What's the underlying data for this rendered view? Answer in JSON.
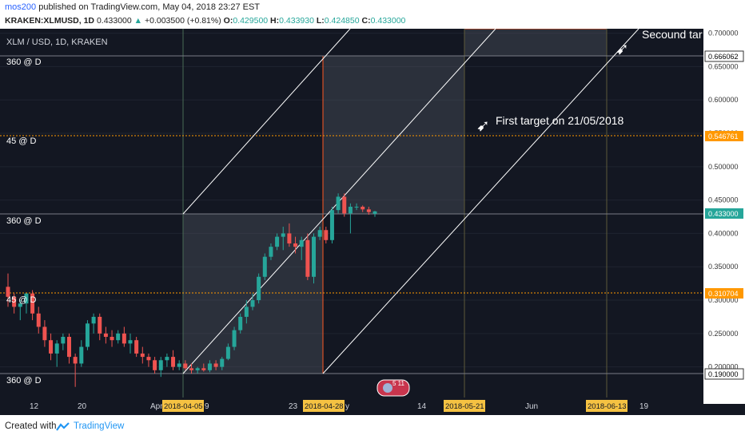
{
  "header": {
    "author": "mos200",
    "published_text": "published on TradingView.com, May 04, 2018 23:27 EST",
    "symbol": "KRAKEN:XLMUSD, 1D",
    "last": "0.433000",
    "arrow": "▲",
    "change": "+0.003500 (+0.81%)",
    "o_label": "O:",
    "o_value": "0.429500",
    "h_label": "H:",
    "h_value": "0.433930",
    "l_label": "L:",
    "l_value": "0.424850",
    "c_label": "C:",
    "c_value": "0.433000"
  },
  "pane_title": "XLM / USD, 1D, KRAKEN",
  "colors": {
    "background": "#131722",
    "up": "#26a69a",
    "down": "#ef5350",
    "gann_box": "#ff5722",
    "hline": "#ff9800",
    "accent": "#2962ff"
  },
  "level_labels": {
    "top": "360 @ D",
    "upper45": "45 @ D",
    "mid360": "360 @ D",
    "lower45": "45 @ D",
    "bottom": "360 @ D"
  },
  "annotations": {
    "first_target": "First target on 21/05/2018",
    "second_target": "Secound tar"
  },
  "price_labels": {
    "highlight_top": "0.666062",
    "highlight_45": "0.546761",
    "highlight_current": "0.433000",
    "highlight_lower45": "0.310704",
    "highlight_bottom": "0.190000"
  },
  "date_labels": {
    "d1": "2018-04-05",
    "d2": "2018-04-28",
    "d3": "2018-05-21",
    "d4": "2018-06-13"
  },
  "x_ticks_text": {
    "t12": "12",
    "t20": "20",
    "tApr": "Apr",
    "t9": "9",
    "t23": "23",
    "tMay": "y",
    "t14": "14",
    "tJun": "Jun",
    "t19": "19"
  },
  "event_badge": "5 11",
  "footer": {
    "created": "Created with",
    "brand": "TradingView"
  },
  "chart_data": {
    "type": "candlestick",
    "title": "XLM / USD, 1D, KRAKEN",
    "symbol": "KRAKEN:XLMUSD",
    "interval": "1D",
    "ylim": [
      0.16,
      0.71
    ],
    "y_ticks": [
      "0.700000",
      "0.650000",
      "0.600000",
      "0.550000",
      "0.500000",
      "0.450000",
      "0.400000",
      "0.350000",
      "0.300000",
      "0.250000",
      "0.200000"
    ],
    "horizontal_levels": [
      0.666062,
      0.546761,
      0.433,
      0.310704,
      0.19
    ],
    "vertical_dates": [
      "2018-04-05",
      "2018-04-28",
      "2018-05-21",
      "2018-06-13"
    ],
    "last_close": 0.433,
    "candles": [
      {
        "o": 0.32,
        "h": 0.34,
        "l": 0.29,
        "c": 0.305
      },
      {
        "o": 0.305,
        "h": 0.31,
        "l": 0.28,
        "c": 0.29
      },
      {
        "o": 0.29,
        "h": 0.3,
        "l": 0.27,
        "c": 0.295
      },
      {
        "o": 0.295,
        "h": 0.31,
        "l": 0.28,
        "c": 0.31
      },
      {
        "o": 0.31,
        "h": 0.315,
        "l": 0.27,
        "c": 0.28
      },
      {
        "o": 0.28,
        "h": 0.29,
        "l": 0.25,
        "c": 0.26
      },
      {
        "o": 0.26,
        "h": 0.27,
        "l": 0.23,
        "c": 0.24
      },
      {
        "o": 0.24,
        "h": 0.25,
        "l": 0.21,
        "c": 0.22
      },
      {
        "o": 0.22,
        "h": 0.24,
        "l": 0.2,
        "c": 0.235
      },
      {
        "o": 0.235,
        "h": 0.25,
        "l": 0.225,
        "c": 0.245
      },
      {
        "o": 0.245,
        "h": 0.25,
        "l": 0.205,
        "c": 0.215
      },
      {
        "o": 0.215,
        "h": 0.22,
        "l": 0.17,
        "c": 0.205
      },
      {
        "o": 0.205,
        "h": 0.24,
        "l": 0.2,
        "c": 0.23
      },
      {
        "o": 0.23,
        "h": 0.27,
        "l": 0.225,
        "c": 0.265
      },
      {
        "o": 0.265,
        "h": 0.28,
        "l": 0.25,
        "c": 0.275
      },
      {
        "o": 0.275,
        "h": 0.28,
        "l": 0.24,
        "c": 0.25
      },
      {
        "o": 0.25,
        "h": 0.26,
        "l": 0.235,
        "c": 0.245
      },
      {
        "o": 0.245,
        "h": 0.255,
        "l": 0.23,
        "c": 0.24
      },
      {
        "o": 0.24,
        "h": 0.255,
        "l": 0.235,
        "c": 0.25
      },
      {
        "o": 0.25,
        "h": 0.26,
        "l": 0.23,
        "c": 0.235
      },
      {
        "o": 0.235,
        "h": 0.25,
        "l": 0.22,
        "c": 0.24
      },
      {
        "o": 0.24,
        "h": 0.245,
        "l": 0.215,
        "c": 0.22
      },
      {
        "o": 0.22,
        "h": 0.23,
        "l": 0.205,
        "c": 0.215
      },
      {
        "o": 0.215,
        "h": 0.22,
        "l": 0.2,
        "c": 0.21
      },
      {
        "o": 0.21,
        "h": 0.215,
        "l": 0.19,
        "c": 0.195
      },
      {
        "o": 0.195,
        "h": 0.215,
        "l": 0.185,
        "c": 0.21
      },
      {
        "o": 0.21,
        "h": 0.22,
        "l": 0.2,
        "c": 0.215
      },
      {
        "o": 0.215,
        "h": 0.225,
        "l": 0.195,
        "c": 0.2
      },
      {
        "o": 0.2,
        "h": 0.21,
        "l": 0.195,
        "c": 0.205
      },
      {
        "o": 0.205,
        "h": 0.21,
        "l": 0.195,
        "c": 0.198
      },
      {
        "o": 0.198,
        "h": 0.205,
        "l": 0.19,
        "c": 0.195
      },
      {
        "o": 0.195,
        "h": 0.2,
        "l": 0.19,
        "c": 0.198
      },
      {
        "o": 0.198,
        "h": 0.205,
        "l": 0.193,
        "c": 0.195
      },
      {
        "o": 0.195,
        "h": 0.21,
        "l": 0.192,
        "c": 0.205
      },
      {
        "o": 0.205,
        "h": 0.21,
        "l": 0.195,
        "c": 0.2
      },
      {
        "o": 0.2,
        "h": 0.215,
        "l": 0.195,
        "c": 0.212
      },
      {
        "o": 0.212,
        "h": 0.235,
        "l": 0.21,
        "c": 0.23
      },
      {
        "o": 0.23,
        "h": 0.26,
        "l": 0.225,
        "c": 0.255
      },
      {
        "o": 0.255,
        "h": 0.28,
        "l": 0.25,
        "c": 0.275
      },
      {
        "o": 0.275,
        "h": 0.3,
        "l": 0.265,
        "c": 0.29
      },
      {
        "o": 0.29,
        "h": 0.31,
        "l": 0.285,
        "c": 0.3
      },
      {
        "o": 0.3,
        "h": 0.34,
        "l": 0.295,
        "c": 0.335
      },
      {
        "o": 0.335,
        "h": 0.37,
        "l": 0.33,
        "c": 0.365
      },
      {
        "o": 0.365,
        "h": 0.385,
        "l": 0.36,
        "c": 0.38
      },
      {
        "o": 0.38,
        "h": 0.4,
        "l": 0.375,
        "c": 0.395
      },
      {
        "o": 0.395,
        "h": 0.41,
        "l": 0.375,
        "c": 0.4
      },
      {
        "o": 0.4,
        "h": 0.415,
        "l": 0.38,
        "c": 0.385
      },
      {
        "o": 0.385,
        "h": 0.395,
        "l": 0.37,
        "c": 0.38
      },
      {
        "o": 0.38,
        "h": 0.395,
        "l": 0.36,
        "c": 0.39
      },
      {
        "o": 0.39,
        "h": 0.4,
        "l": 0.33,
        "c": 0.335
      },
      {
        "o": 0.335,
        "h": 0.4,
        "l": 0.325,
        "c": 0.395
      },
      {
        "o": 0.395,
        "h": 0.41,
        "l": 0.39,
        "c": 0.405
      },
      {
        "o": 0.405,
        "h": 0.41,
        "l": 0.385,
        "c": 0.39
      },
      {
        "o": 0.39,
        "h": 0.44,
        "l": 0.385,
        "c": 0.435
      },
      {
        "o": 0.435,
        "h": 0.46,
        "l": 0.43,
        "c": 0.455
      },
      {
        "o": 0.455,
        "h": 0.46,
        "l": 0.425,
        "c": 0.43
      },
      {
        "o": 0.43,
        "h": 0.445,
        "l": 0.4,
        "c": 0.44
      },
      {
        "o": 0.44,
        "h": 0.445,
        "l": 0.435,
        "c": 0.44
      },
      {
        "o": 0.44,
        "h": 0.442,
        "l": 0.432,
        "c": 0.436
      },
      {
        "o": 0.436,
        "h": 0.44,
        "l": 0.428,
        "c": 0.432
      },
      {
        "o": 0.4295,
        "h": 0.43393,
        "l": 0.42485,
        "c": 0.433
      }
    ]
  }
}
